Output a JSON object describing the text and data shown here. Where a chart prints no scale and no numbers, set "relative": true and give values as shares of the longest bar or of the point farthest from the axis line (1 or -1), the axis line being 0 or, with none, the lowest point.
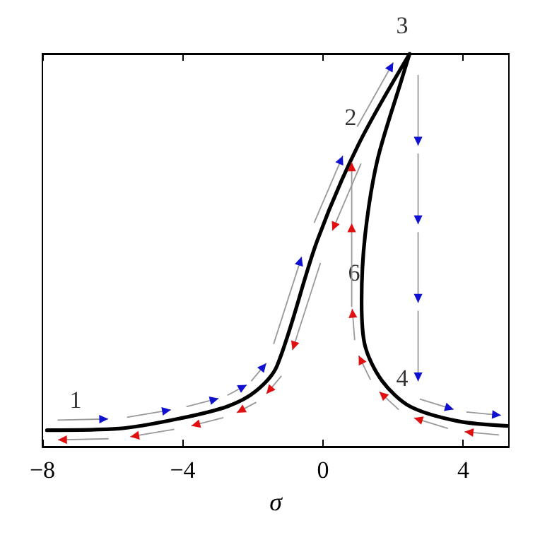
{
  "chart_data": {
    "type": "line",
    "relative": true,
    "xlabel": "σ",
    "xlim": [
      -8,
      5.3
    ],
    "xticks": [
      -8,
      -4,
      0,
      4
    ],
    "grid": false,
    "marker": "none",
    "line_style": "solid",
    "series": [
      {
        "color": "#000000",
        "x": [
          -7.87,
          -5.81,
          -4.02,
          -2.71,
          -1.92,
          -1.31,
          -0.17,
          1.0,
          2.47,
          2.23,
          1.55,
          1.2,
          1.1,
          1.2,
          1.68,
          2.47,
          3.85,
          5.26
        ],
        "values": [
          0.042,
          0.046,
          0.073,
          0.103,
          0.141,
          0.206,
          0.523,
          0.767,
          1.0,
          0.931,
          0.729,
          0.538,
          0.37,
          0.256,
          0.168,
          0.103,
          0.065,
          0.053
        ]
      }
    ],
    "annotations": [
      {
        "text": "1",
        "x": -6.84,
        "y": 0.046
      },
      {
        "text": "2",
        "x": 1.0,
        "y": 0.767
      },
      {
        "text": "3",
        "x": 2.47,
        "y": 1.0
      },
      {
        "text": "4",
        "x": 2.47,
        "y": 0.103
      },
      {
        "text": "6",
        "x": 1.1,
        "y": 0.37
      }
    ]
  }
}
